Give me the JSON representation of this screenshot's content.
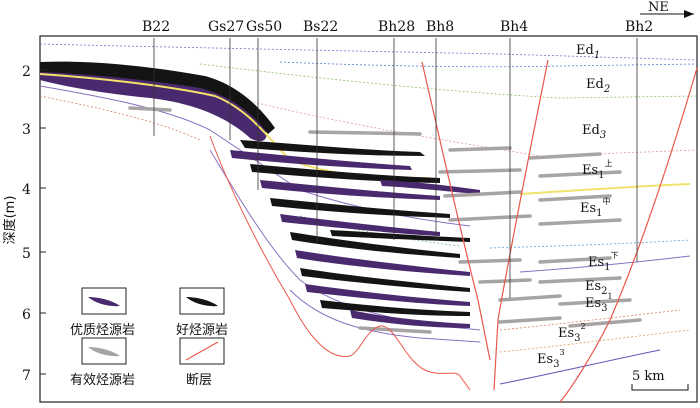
{
  "compass": {
    "label": "NE"
  },
  "wells": [
    "B22",
    "Gs27",
    "Gs50",
    "Bs22",
    "Bh28",
    "Bh8",
    "Bh4",
    "Bh2"
  ],
  "y_axis": {
    "label": "深度(m)",
    "ticks": [
      "2",
      "3",
      "4",
      "5",
      "6",
      "7"
    ]
  },
  "formations": [
    {
      "base": "Ed",
      "sub": "1",
      "sup": ""
    },
    {
      "base": "Ed",
      "sub": "2",
      "sup": ""
    },
    {
      "base": "Ed",
      "sub": "3",
      "sup": ""
    },
    {
      "base": "Es",
      "sub": "1",
      "sup": "上"
    },
    {
      "base": "Es",
      "sub": "1",
      "sup": "中"
    },
    {
      "base": "Es",
      "sub": "1",
      "sup": "下"
    },
    {
      "base": "Es",
      "sub": "2",
      "sup": ""
    },
    {
      "base": "Es",
      "sub": "3",
      "sup": "1"
    },
    {
      "base": "Es",
      "sub": "3",
      "sup": "2"
    },
    {
      "base": "Es",
      "sub": "3",
      "sup": "3"
    }
  ],
  "legend": {
    "excellent": "优质烃源岩",
    "good": "好烃源岩",
    "effective": "有效烃源岩",
    "fault": "断层"
  },
  "scale_bar": {
    "label": "5 km"
  },
  "colors": {
    "excellent": "#4a2a6e",
    "good": "#141414",
    "effective": "#a8a4a4",
    "fault": "#e8574a",
    "yellow_horizon": "#f2e26a",
    "purple_horizon": "#8a6fc4"
  }
}
